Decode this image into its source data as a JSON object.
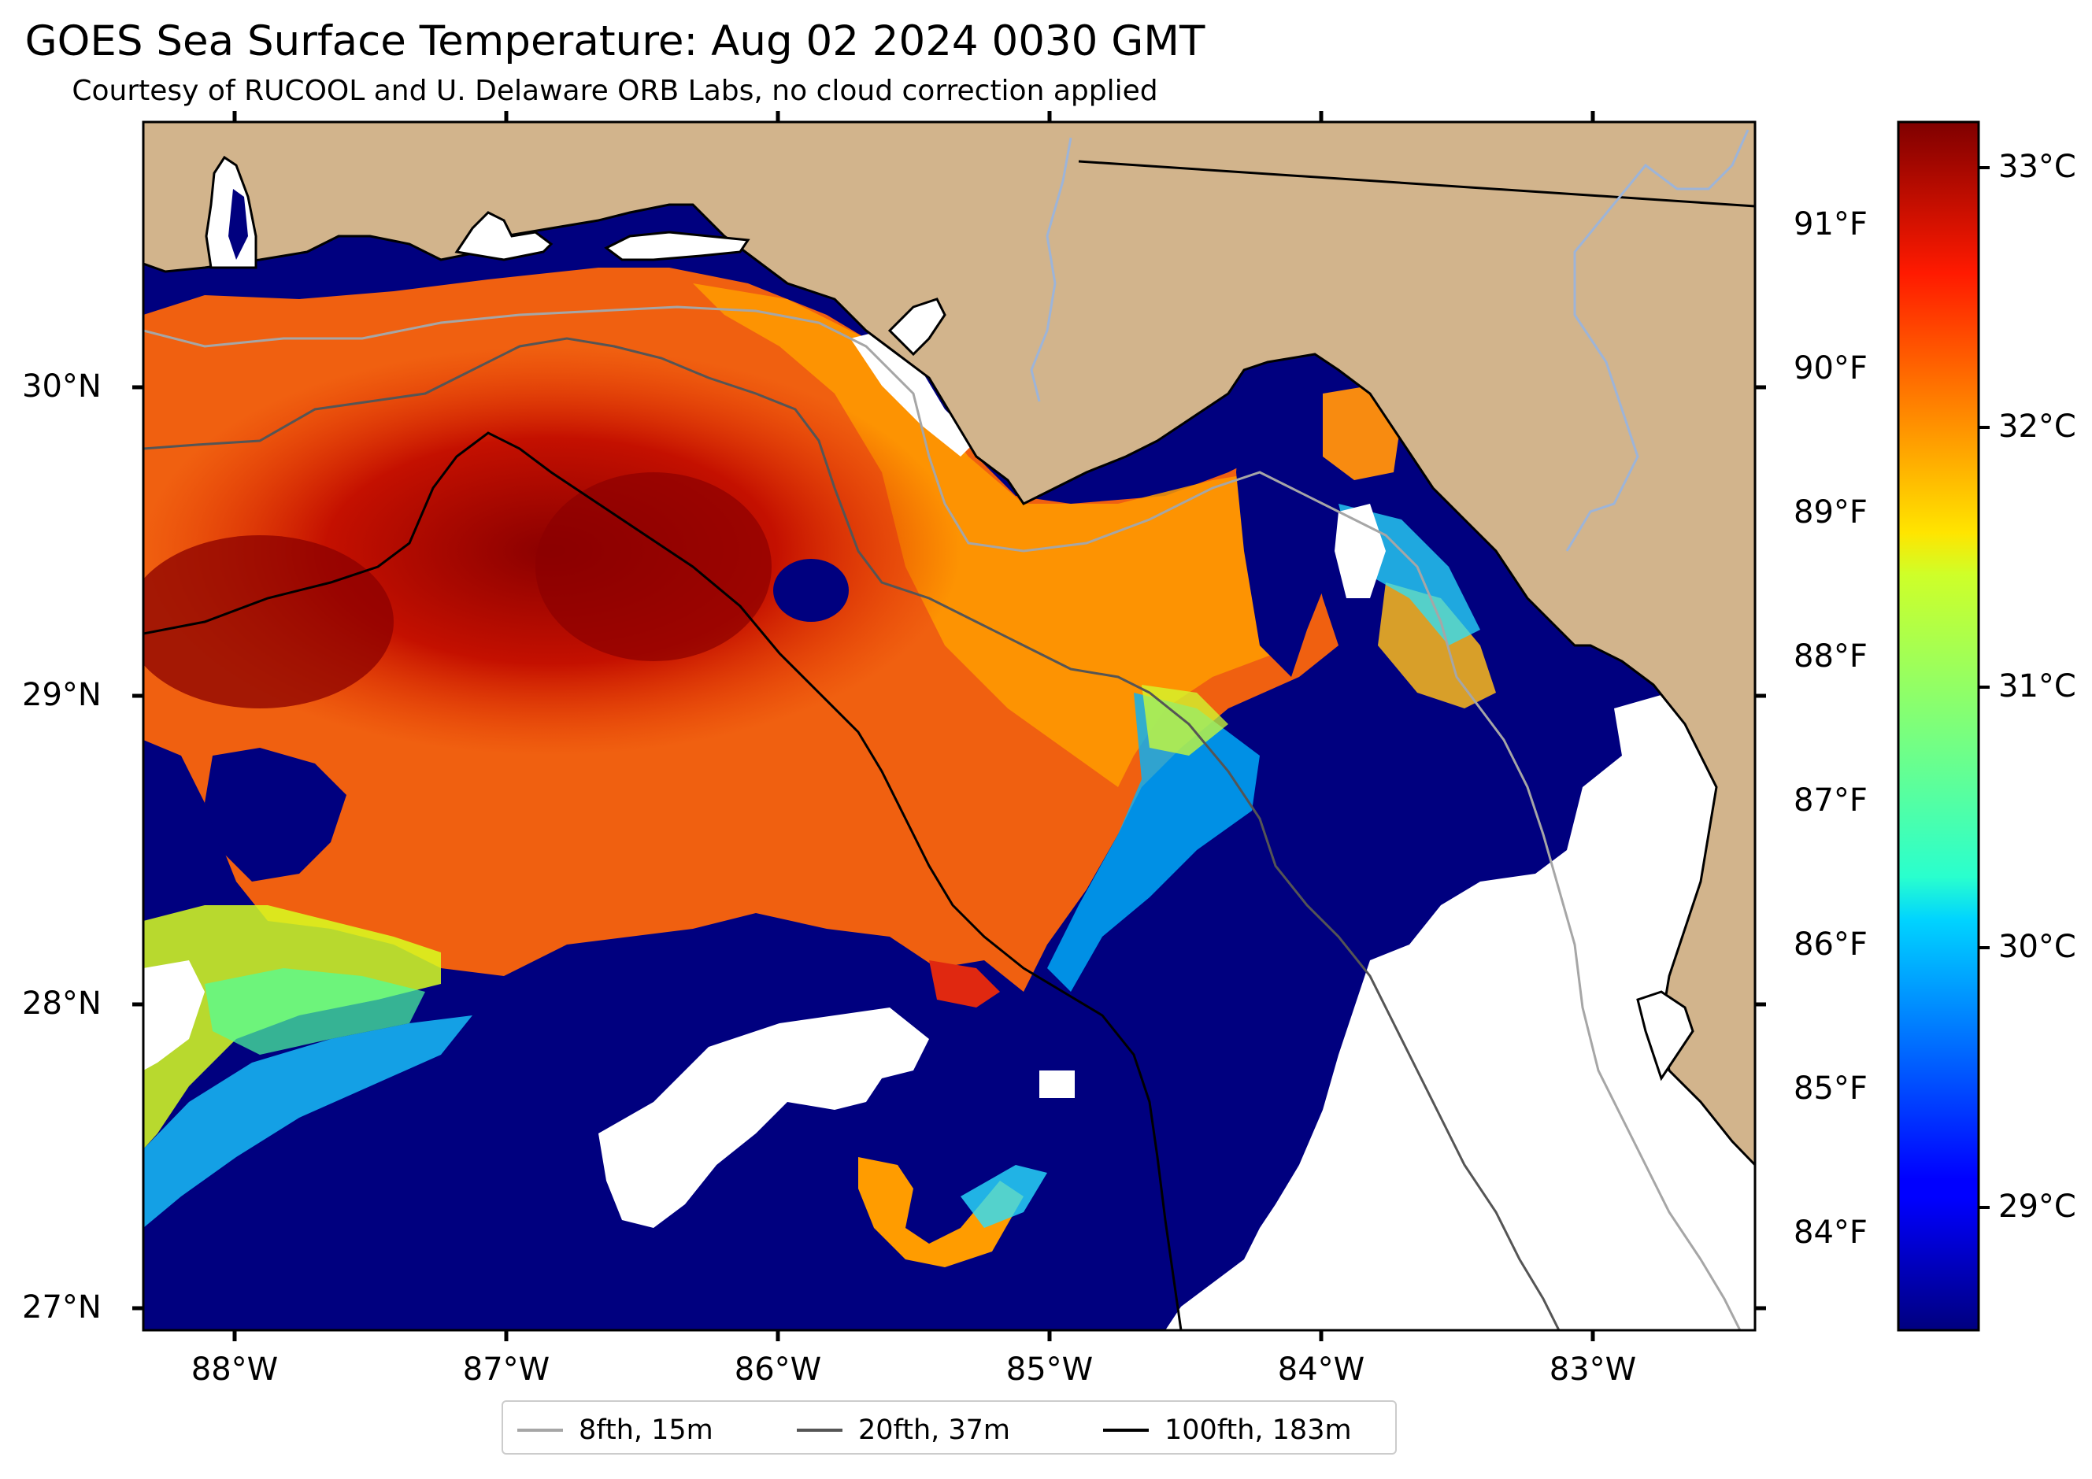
{
  "title": "GOES Sea Surface Temperature: Aug 02 2024 0030 GMT",
  "subtitle": "Courtesy of RUCOOL and U. Delaware ORB Labs, no cloud correction applied",
  "map": {
    "lon_range": [
      -88.33,
      -82.4
    ],
    "lat_range": [
      26.93,
      30.86
    ],
    "land_color": "#d2b48c",
    "no_data_color": "#ffffff",
    "lat_ticks": [
      "30°N",
      "29°N",
      "28°N",
      "27°N"
    ],
    "lon_ticks": [
      "88°W",
      "87°W",
      "86°W",
      "85°W",
      "84°W",
      "83°W"
    ],
    "right_axis_ticks": [
      "91°F",
      "90°F",
      "89°F",
      "88°F",
      "87°F",
      "86°F",
      "85°F",
      "84°F"
    ]
  },
  "colorbar": {
    "colormap": "jet",
    "range_c": [
      28.55,
      33.25
    ],
    "ticks": [
      "33°C",
      "32°C",
      "31°C",
      "30°C",
      "29°C"
    ]
  },
  "legend": {
    "items": [
      {
        "label": "8fth, 15m",
        "color": "#a6a6a6"
      },
      {
        "label": "20fth, 37m",
        "color": "#555555"
      },
      {
        "label": "100fth, 183m",
        "color": "#000000"
      }
    ]
  }
}
